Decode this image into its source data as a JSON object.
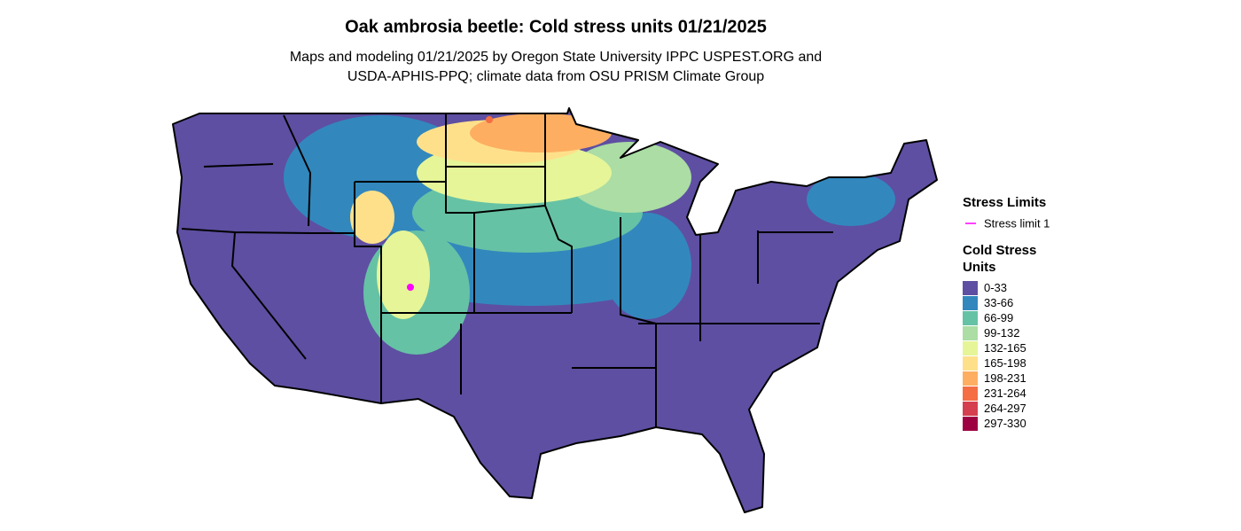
{
  "header": {
    "title": "Oak ambrosia beetle: Cold stress units 01/21/2025",
    "subtitle": [
      "Maps and modeling 01/21/2025 by Oregon State University IPPC USPEST.ORG and",
      "USDA-APHIS-PPQ; climate data from OSU PRISM Climate Group"
    ]
  },
  "legend": {
    "stress_limits": {
      "title": "Stress Limits",
      "items": [
        {
          "label": "Stress limit 1",
          "color": "#ff00ff"
        }
      ]
    },
    "cold_stress": {
      "title": [
        "Cold Stress",
        "Units"
      ],
      "items": [
        {
          "label": "0-33",
          "color": "#5e4fa2"
        },
        {
          "label": "33-66",
          "color": "#3288bd"
        },
        {
          "label": "66-99",
          "color": "#66c2a5"
        },
        {
          "label": "99-132",
          "color": "#abdda4"
        },
        {
          "label": "132-165",
          "color": "#e6f598"
        },
        {
          "label": "165-198",
          "color": "#fee08b"
        },
        {
          "label": "198-231",
          "color": "#fdae61"
        },
        {
          "label": "231-264",
          "color": "#f46d43"
        },
        {
          "label": "264-297",
          "color": "#d53e4f"
        },
        {
          "label": "297-330",
          "color": "#9e0142"
        }
      ]
    }
  }
}
